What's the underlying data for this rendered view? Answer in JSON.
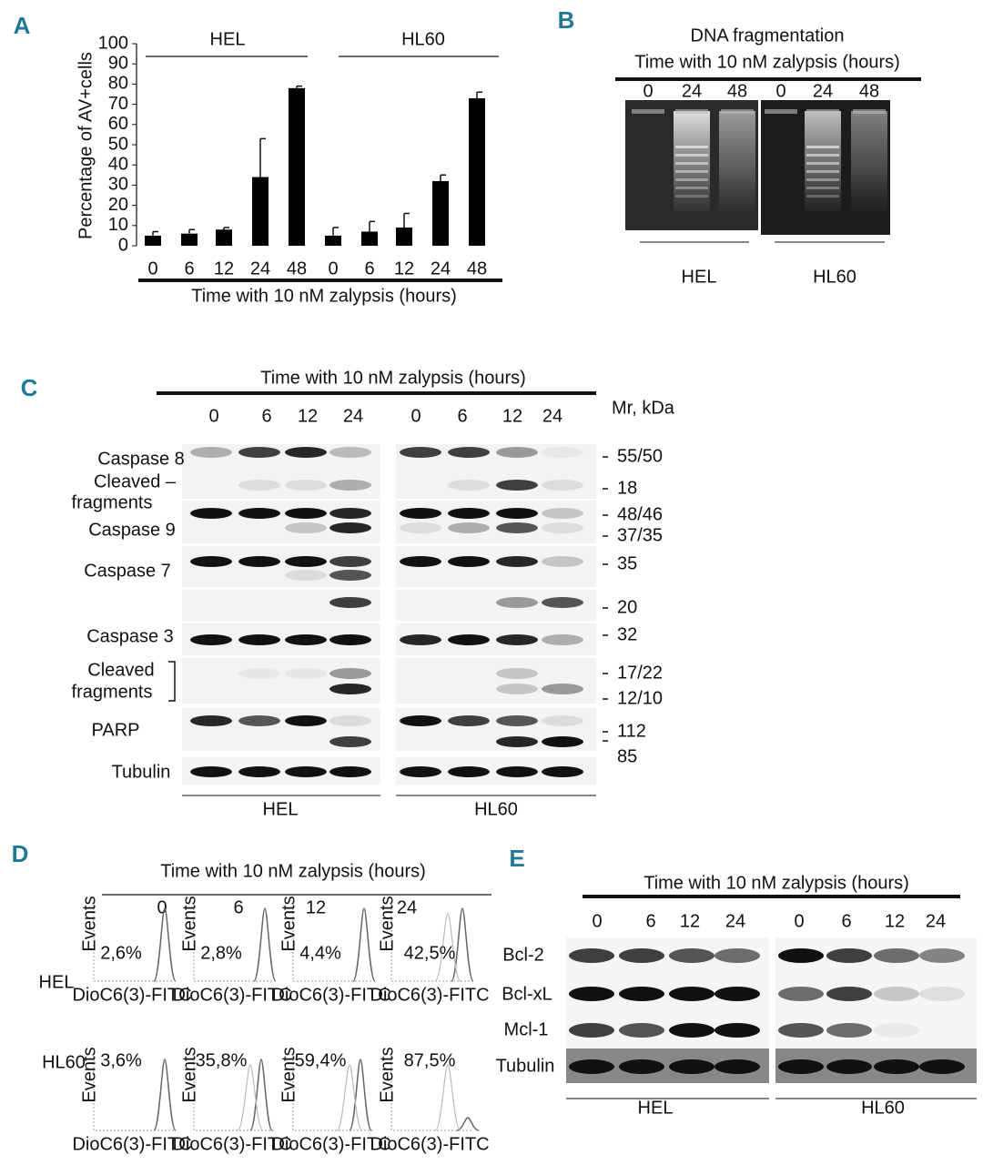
{
  "chart_data": {
    "type": "bar",
    "y_axis_label": "Percentage of AV+cells",
    "x_axis_label": "Time with 10 nM zalypsis (hours)",
    "group_labels": [
      "HEL",
      "HL60"
    ],
    "categories": [
      "0",
      "6",
      "12",
      "24",
      "48",
      "0",
      "6",
      "12",
      "24",
      "48"
    ],
    "values": [
      5,
      6,
      8,
      34,
      78,
      5,
      7,
      9,
      32,
      73
    ],
    "errors": [
      2,
      2,
      1,
      19,
      1,
      4,
      5,
      7,
      3,
      3
    ],
    "color": "#000000",
    "ylim": [
      0,
      100
    ],
    "yticks": [
      0,
      10,
      20,
      30,
      40,
      50,
      60,
      70,
      80,
      90,
      100
    ]
  },
  "panel_labels": [
    "A",
    "B",
    "C",
    "D",
    "E"
  ],
  "panel_b": {
    "title": "DNA fragmentation",
    "subtitle": "Time with 10 nM zalypsis (hours)",
    "lanes": [
      "0",
      "24",
      "48",
      "0",
      "24",
      "48"
    ],
    "cell_lines": [
      "HEL",
      "HL60"
    ]
  },
  "panel_c": {
    "title": "Time with 10 nM zalypsis (hours)",
    "lanes": [
      "0",
      "6",
      "12",
      "24",
      "0",
      "6",
      "12",
      "24"
    ],
    "mw_header": "Mr, kDa",
    "row_labels": [
      "Caspase 8",
      "Cleaved –",
      "fragments",
      "Caspase 9",
      "Caspase 7",
      "Caspase 3",
      "Cleaved",
      "fragments",
      "PARP",
      "Tubulin"
    ],
    "mw_labels": [
      "55/50",
      "18",
      "48/46",
      "37/35",
      "35",
      "20",
      "32",
      "17/22",
      "12/10",
      "112",
      "85"
    ],
    "cell_lines": [
      "HEL",
      "HL60"
    ]
  },
  "panel_d": {
    "title": "Time with 10 nM zalypsis (hours)",
    "times": [
      "0",
      "6",
      "12",
      "24"
    ],
    "x_axis_label": "DioC6(3)-FITC",
    "y_axis_label": "Events",
    "rows": [
      {
        "label": "HEL",
        "values": [
          "2,6%",
          "2,8%",
          "4,4%",
          "42,5%"
        ]
      },
      {
        "label": "HL60",
        "values": [
          "3,6%",
          "35,8%",
          "59,4%",
          "87,5%"
        ]
      }
    ]
  },
  "panel_e": {
    "title": "Time with 10 nM zalypsis (hours)",
    "lanes": [
      "0",
      "6",
      "12",
      "24",
      "0",
      "6",
      "12",
      "24"
    ],
    "row_labels": [
      "Bcl-2",
      "Bcl-xL",
      "Mcl-1",
      "Tubulin"
    ],
    "cell_lines": [
      "HEL",
      "HL60"
    ]
  }
}
